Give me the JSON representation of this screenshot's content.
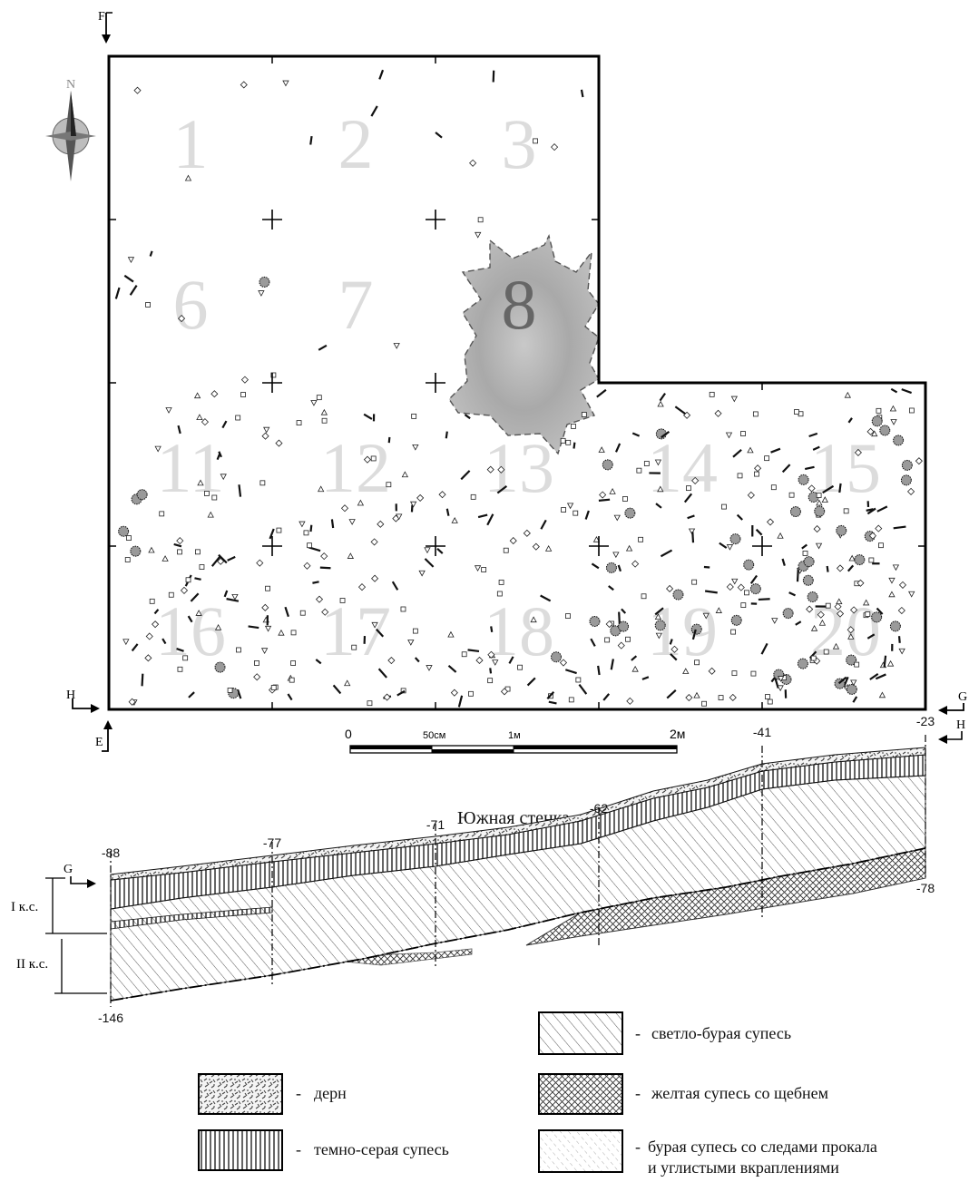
{
  "plan": {
    "squares": [
      "1",
      "2",
      "3",
      "6",
      "7",
      "8",
      "11",
      "12",
      "13",
      "14",
      "15",
      "16",
      "17",
      "18",
      "19",
      "20"
    ],
    "compass_letter": "N",
    "section_markers": {
      "F": "F",
      "E": "E",
      "H_left": "H",
      "G_right": "G"
    },
    "scale": {
      "zero": "0",
      "half_m": "50см",
      "one_m": "1м",
      "two_m": "2м"
    }
  },
  "profile": {
    "title": "Южная стенка",
    "marker_g": "G",
    "marker_h": "H",
    "elevations": [
      "-88",
      "-77",
      "-71",
      "-62",
      "-41",
      "-23",
      "-146",
      "-78"
    ],
    "layers": [
      "I к.с.",
      "II к.с."
    ]
  },
  "legend": [
    {
      "pattern": "sod",
      "dash": "-",
      "label": "дерн"
    },
    {
      "pattern": "vertical",
      "dash": "-",
      "label": "темно-серая супесь"
    },
    {
      "pattern": "diagonal",
      "dash": "-",
      "label": "светло-бурая супесь"
    },
    {
      "pattern": "crosshatch",
      "dash": "-",
      "label": "желтая супесь со щебнем"
    },
    {
      "pattern": "diagonal-light",
      "dash": "-",
      "label": "бурая супесь со следами прокала",
      "label2": "и углистыми вкраплениями"
    }
  ]
}
